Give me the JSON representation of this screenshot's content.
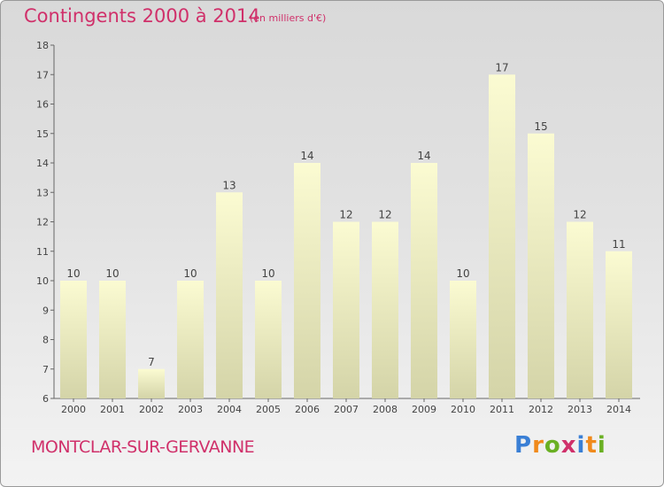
{
  "header": {
    "title": "Contingents 2000 à 2014",
    "subtitle": "(en milliers d'€)"
  },
  "footer": {
    "commune": "MONTCLAR-SUR-GERVANNE",
    "logo_text": "Proxiti"
  },
  "colors": {
    "accent": "#d0306a",
    "bar_top": "#fbfbd2",
    "bar_bottom": "#d4d4a8",
    "axis": "#666666"
  },
  "chart_data": {
    "type": "bar",
    "title": "Contingents 2000 à 2014",
    "subtitle": "(en milliers d'€)",
    "xlabel": "",
    "ylabel": "",
    "categories": [
      "2000",
      "2001",
      "2002",
      "2003",
      "2004",
      "2005",
      "2006",
      "2007",
      "2008",
      "2009",
      "2010",
      "2011",
      "2012",
      "2013",
      "2014"
    ],
    "values": [
      10,
      10,
      7,
      10,
      13,
      10,
      14,
      12,
      12,
      14,
      10,
      17,
      15,
      12,
      11
    ],
    "ylim": [
      6,
      18
    ],
    "yticks": [
      6,
      7,
      8,
      9,
      10,
      11,
      12,
      13,
      14,
      15,
      16,
      17,
      18
    ],
    "grid": false,
    "legend": "none"
  }
}
